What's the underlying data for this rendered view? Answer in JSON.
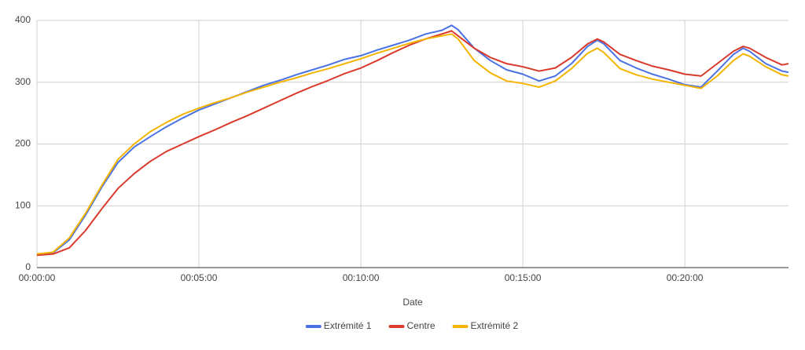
{
  "chart_data": {
    "type": "line",
    "xlabel": "Date",
    "x": [
      0,
      0.5,
      1,
      1.5,
      2,
      2.5,
      3,
      3.5,
      4,
      4.5,
      5,
      5.5,
      6,
      6.5,
      7,
      7.5,
      8,
      8.5,
      9,
      9.5,
      10,
      10.5,
      11,
      11.5,
      12,
      12.5,
      12.8,
      13,
      13.5,
      14,
      14.5,
      15,
      15.5,
      16,
      16.5,
      17,
      17.3,
      17.5,
      18,
      18.5,
      19,
      19.5,
      20,
      20.5,
      21,
      21.5,
      21.8,
      22,
      22.5,
      23,
      23.2
    ],
    "series": [
      {
        "name": "Extrémité 1",
        "color": "#4a72e3",
        "values": [
          22,
          24,
          45,
          85,
          130,
          170,
          195,
          212,
          228,
          242,
          255,
          265,
          275,
          285,
          295,
          303,
          312,
          320,
          328,
          337,
          343,
          352,
          360,
          368,
          378,
          384,
          392,
          385,
          355,
          335,
          320,
          313,
          302,
          310,
          330,
          358,
          368,
          362,
          335,
          323,
          313,
          305,
          296,
          292,
          318,
          345,
          355,
          350,
          330,
          318,
          316
        ]
      },
      {
        "name": "Centre",
        "color": "#d93a2b",
        "values": [
          20,
          22,
          32,
          60,
          95,
          128,
          152,
          172,
          188,
          200,
          212,
          223,
          235,
          246,
          258,
          270,
          282,
          293,
          303,
          314,
          323,
          335,
          348,
          360,
          370,
          378,
          383,
          375,
          355,
          340,
          330,
          325,
          318,
          323,
          340,
          362,
          370,
          365,
          345,
          335,
          326,
          320,
          313,
          310,
          330,
          350,
          358,
          355,
          340,
          328,
          330
        ]
      },
      {
        "name": "Extrémité 2",
        "color": "#f4b400",
        "values": [
          22,
          25,
          48,
          88,
          133,
          175,
          200,
          220,
          235,
          248,
          258,
          267,
          275,
          284,
          292,
          300,
          307,
          315,
          322,
          330,
          338,
          347,
          355,
          363,
          370,
          375,
          378,
          370,
          335,
          315,
          302,
          298,
          292,
          302,
          322,
          347,
          355,
          348,
          322,
          312,
          305,
          300,
          295,
          290,
          310,
          335,
          346,
          342,
          325,
          312,
          310
        ]
      }
    ],
    "xlim": [
      0,
      23.2
    ],
    "ylim": [
      0,
      400
    ],
    "xticks": [
      {
        "value": 0,
        "label": "00:00:00"
      },
      {
        "value": 5,
        "label": "00:05:00"
      },
      {
        "value": 10,
        "label": "00:10:00"
      },
      {
        "value": 15,
        "label": "00:15:00"
      },
      {
        "value": 20,
        "label": "00:20:00"
      }
    ],
    "yticks": [
      0,
      100,
      200,
      300,
      400
    ],
    "grid": true,
    "legend": "bottom"
  }
}
